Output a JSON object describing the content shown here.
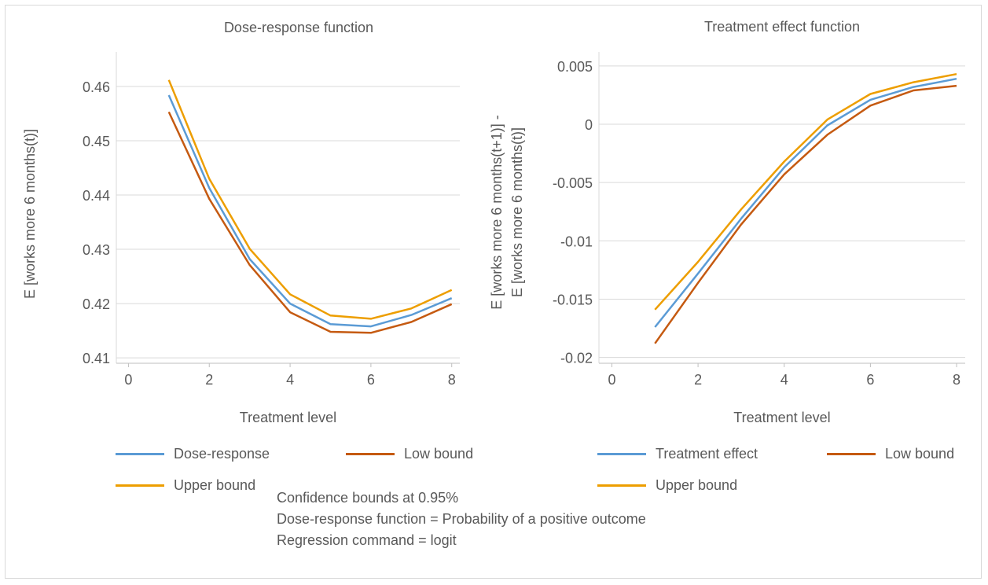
{
  "chart_data": [
    {
      "type": "line",
      "title": "Dose-response function",
      "xlabel": "Treatment level",
      "ylabel": "E [works more 6 months(t)]",
      "xlim": [
        -0.3,
        8.2
      ],
      "ylim": [
        0.409,
        0.4655
      ],
      "xticks": [
        0,
        2,
        4,
        6,
        8
      ],
      "xtick_labels": [
        "0",
        "2",
        "4",
        "6",
        "8"
      ],
      "yticks": [
        0.41,
        0.42,
        0.43,
        0.44,
        0.45,
        0.46
      ],
      "ytick_labels": [
        "0.41",
        "0.42",
        "0.43",
        "0.44",
        "0.45",
        "0.46"
      ],
      "grid": "horizontal",
      "legend": "bottom",
      "x": [
        1,
        2,
        3,
        4,
        5,
        6,
        7,
        8
      ],
      "series": [
        {
          "name": "Dose-response",
          "color": "#5b9bd5",
          "values": [
            0.4584,
            0.4413,
            0.4282,
            0.42,
            0.4162,
            0.4158,
            0.4179,
            0.421
          ]
        },
        {
          "name": "Low bound",
          "color": "#c55a11",
          "values": [
            0.4553,
            0.4393,
            0.4271,
            0.4184,
            0.4148,
            0.4146,
            0.4166,
            0.4199
          ]
        },
        {
          "name": "Upper bound",
          "color": "#ed9e00",
          "values": [
            0.4612,
            0.443,
            0.4301,
            0.4217,
            0.4178,
            0.4172,
            0.4191,
            0.4225
          ]
        }
      ]
    },
    {
      "type": "line",
      "title": "Treatment effect function",
      "xlabel": "Treatment level",
      "ylabel_lines": [
        "E [works more 6 months(t+1)] -",
        "E [works more 6 months(t)]"
      ],
      "xlim": [
        -0.3,
        8.2
      ],
      "ylim": [
        -0.0205,
        0.0058
      ],
      "xticks": [
        0,
        2,
        4,
        6,
        8
      ],
      "xtick_labels": [
        "0",
        "2",
        "4",
        "6",
        "8"
      ],
      "yticks": [
        -0.02,
        -0.015,
        -0.01,
        -0.005,
        0,
        0.005
      ],
      "ytick_labels": [
        "-0.02",
        "-0.015",
        "-0.01",
        "-0.005",
        "0",
        "0.005"
      ],
      "grid": "horizontal",
      "legend": "bottom",
      "x": [
        1,
        2,
        3,
        4,
        5,
        6,
        7,
        8
      ],
      "series": [
        {
          "name": "Treatment effect",
          "color": "#5b9bd5",
          "values": [
            -0.0174,
            -0.0128,
            -0.0081,
            -0.0037,
            -0.0001,
            0.0021,
            0.0032,
            0.0039
          ]
        },
        {
          "name": "Low bound",
          "color": "#c55a11",
          "values": [
            -0.0188,
            -0.0136,
            -0.0086,
            -0.0043,
            -0.0009,
            0.0016,
            0.0029,
            0.0033
          ]
        },
        {
          "name": "Upper bound",
          "color": "#ed9e00",
          "values": [
            -0.0159,
            -0.0118,
            -0.0073,
            -0.0032,
            0.0004,
            0.0026,
            0.0036,
            0.0043
          ]
        }
      ]
    }
  ],
  "notes": [
    "Confidence bounds at 0.95%",
    "Dose-response function = Probability of a positive outcome",
    "Regression command = logit"
  ]
}
